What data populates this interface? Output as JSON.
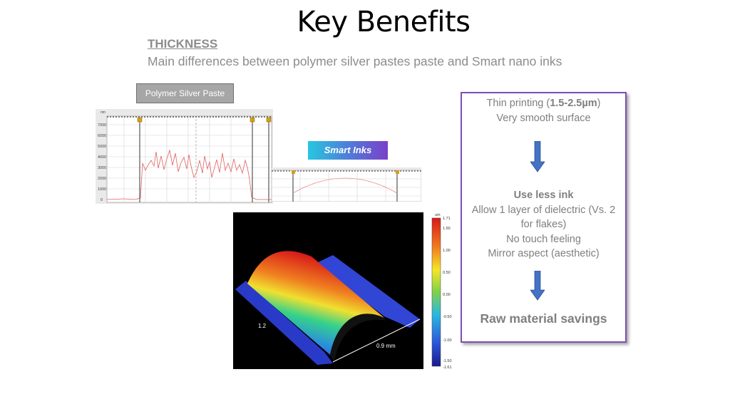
{
  "slide": {
    "title": "Key Benefits",
    "section_heading": "THICKNESS",
    "subtitle": "Main differences between polymer silver pastes paste and Smart nano inks"
  },
  "labels": {
    "polymer": "Polymer Silver Paste",
    "smart": "Smart Inks"
  },
  "polymer_chart": {
    "unit": "nm",
    "ticks": [
      "7000",
      "6000",
      "5000",
      "4000",
      "3000",
      "2000",
      "1000",
      "0"
    ]
  },
  "surface": {
    "width_label": "0.9 mm",
    "length_label": "1.2",
    "colorbar_unit": "um",
    "colorbar_ticks": [
      "1.71",
      "1.50",
      "1.00",
      "0.50",
      "0.00",
      "-0.50",
      "-1.00",
      "-1.50",
      "-1.61"
    ],
    "colorbar_colors": [
      "#d7191c",
      "#f07f1f",
      "#f5e626",
      "#7fd14a",
      "#2cb8e0",
      "#2b54d6",
      "#1a1a8c"
    ]
  },
  "benefits": {
    "line1_prefix": "Thin printing (",
    "line1_bold": "1.5-2.5µm",
    "line1_suffix": ")",
    "line2": "Very smooth surface",
    "use_less_ink": "Use less ink",
    "dielectric_line1": "Allow 1 layer of dielectric (Vs. 2",
    "dielectric_line2": "for flakes)",
    "no_touch": "No touch feeling",
    "mirror": "Mirror aspect (aesthetic)",
    "savings": "Raw material savings"
  },
  "colors": {
    "box_border": "#7b4fb6",
    "arrow": "#4472c4",
    "profile_line": "#e06060"
  }
}
